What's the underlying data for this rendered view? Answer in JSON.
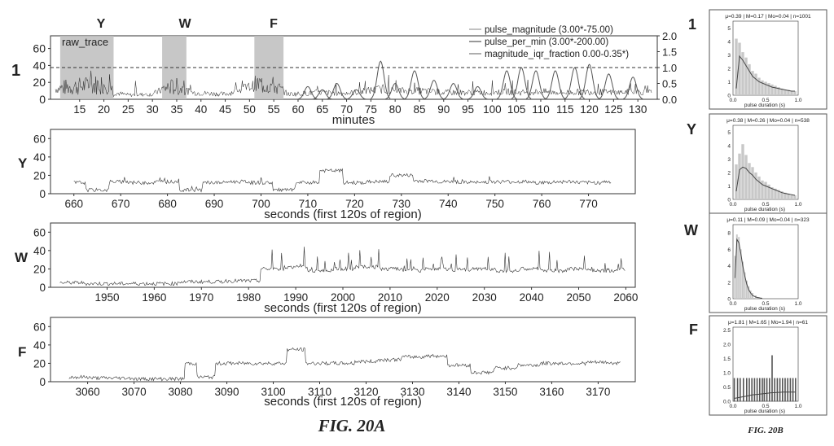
{
  "figure_a": {
    "caption": "FIG. 20A",
    "top_panel": {
      "row_label": "1",
      "x_label": "minutes",
      "inset_label": "raw_trace",
      "region_labels": [
        "Y",
        "W",
        "F"
      ],
      "legend": [
        "pulse_magnitude (3.00*-75.00)",
        "pulse_per_min (3.00*-200.00)",
        "magnitude_iqr_fraction 0.00-0.35*)"
      ],
      "y_ticks": [
        "0",
        "20",
        "40",
        "60"
      ],
      "y2_ticks": [
        "0.0",
        "0.5",
        "1.0",
        "1.5",
        "2.0"
      ],
      "x_ticks": [
        "15",
        "20",
        "25",
        "30",
        "35",
        "40",
        "45",
        "50",
        "55",
        "60",
        "65",
        "70",
        "75",
        "80",
        "85",
        "90",
        "95",
        "100",
        "105",
        "110",
        "115",
        "120",
        "125",
        "130"
      ]
    },
    "panels": [
      {
        "row_label": "Y",
        "x_label": "seconds (first 120s of region)",
        "y_ticks": [
          "0",
          "20",
          "40",
          "60"
        ],
        "x_ticks": [
          "660",
          "670",
          "680",
          "690",
          "700",
          "710",
          "720",
          "730",
          "740",
          "750",
          "760",
          "770"
        ]
      },
      {
        "row_label": "W",
        "x_label": "seconds (first 120s of region)",
        "y_ticks": [
          "0",
          "20",
          "40",
          "60"
        ],
        "x_ticks": [
          "1950",
          "1960",
          "1970",
          "1980",
          "1990",
          "2000",
          "2010",
          "2020",
          "2030",
          "2040",
          "2050",
          "2060"
        ]
      },
      {
        "row_label": "F",
        "x_label": "seconds (first 120s of region)",
        "y_ticks": [
          "0",
          "20",
          "40",
          "60"
        ],
        "x_ticks": [
          "3060",
          "3070",
          "3080",
          "3090",
          "3100",
          "3110",
          "3120",
          "3130",
          "3140",
          "3150",
          "3160",
          "3170"
        ]
      }
    ]
  },
  "figure_b": {
    "caption": "FIG. 20B",
    "x_label": "pulse duration (s)",
    "x_ticks": [
      "0.0",
      "0.5",
      "1.0"
    ],
    "panels": [
      {
        "row_label": "1",
        "stats": "μ=0.39 | M=0.17 | Mo=0.04 | n=1001",
        "y_ticks": [
          "0",
          "1",
          "2",
          "3",
          "4",
          "5"
        ]
      },
      {
        "row_label": "Y",
        "stats": "μ=0.38 | M=0.26 | Mo=0.04 | n=538",
        "y_ticks": [
          "0",
          "1",
          "2",
          "3",
          "4",
          "5"
        ]
      },
      {
        "row_label": "W",
        "stats": "μ=0.11 | M=0.09 | Mo=0.04 | n=323",
        "y_ticks": [
          "0",
          "2",
          "4",
          "6",
          "8"
        ]
      },
      {
        "row_label": "F",
        "stats": "μ=1.81 | M=1.65 | Mo=1.94 | n=61",
        "y_ticks": [
          "0.0",
          "0.5",
          "1.0",
          "1.5",
          "2.0",
          "2.5"
        ]
      }
    ]
  },
  "chart_data": [
    {
      "type": "line",
      "x_unit": "minutes",
      "xlim": [
        9,
        134
      ],
      "ylim": [
        0,
        75
      ],
      "y2lim": [
        0,
        2.0
      ],
      "highlighted_regions": [
        {
          "label": "Y",
          "x": [
            11,
            22
          ]
        },
        {
          "label": "W",
          "x": [
            32,
            37
          ]
        },
        {
          "label": "F",
          "x": [
            51,
            57
          ]
        }
      ],
      "series": [
        {
          "name": "pulse_magnitude (3.00*-75.00)",
          "x": [
            10,
            12,
            14,
            16,
            18,
            20,
            21,
            22,
            25,
            30,
            33,
            35,
            38,
            45,
            52,
            55,
            58,
            65,
            70,
            77,
            80,
            85,
            90,
            95,
            100,
            103,
            106,
            110,
            115,
            120,
            125,
            130,
            133
          ],
          "values": [
            12,
            14,
            15,
            16,
            17,
            18,
            20,
            8,
            5,
            6,
            14,
            15,
            8,
            6,
            18,
            16,
            6,
            8,
            7,
            12,
            10,
            10,
            8,
            8,
            8,
            9,
            8,
            9,
            8,
            9,
            8,
            9,
            8
          ]
        },
        {
          "name": "magnitude_iqr_fraction 0.00-0.35*)",
          "x": [
            62,
            65,
            68,
            72,
            77,
            80,
            84,
            88,
            92,
            97,
            103,
            106,
            109,
            113,
            117,
            120,
            124,
            129
          ],
          "values": [
            0.4,
            0.3,
            0.5,
            0.3,
            1.2,
            0.5,
            0.9,
            0.6,
            0.5,
            0.4,
            0.9,
            1.0,
            0.9,
            0.9,
            1.0,
            1.1,
            0.8,
            0.7
          ]
        }
      ],
      "reference_line_y2": 1.0
    },
    {
      "type": "line",
      "region": "Y",
      "xlim": [
        655,
        780
      ],
      "ylim": [
        0,
        70
      ],
      "x": [
        660,
        665,
        670,
        675,
        680,
        685,
        690,
        695,
        700,
        705,
        710,
        715,
        720,
        725,
        730,
        735,
        740,
        745,
        750,
        755,
        760,
        765,
        770,
        775
      ],
      "values": [
        12,
        4,
        13,
        12,
        13,
        4,
        12,
        13,
        12,
        4,
        12,
        25,
        12,
        13,
        20,
        14,
        13,
        12,
        13,
        13,
        12,
        13,
        12,
        13
      ]
    },
    {
      "type": "line",
      "region": "W",
      "xlim": [
        1938,
        2062
      ],
      "ylim": [
        0,
        70
      ],
      "x": [
        1940,
        1950,
        1960,
        1970,
        1980,
        1985,
        1990,
        1995,
        2000,
        2005,
        2010,
        2015,
        2020,
        2025,
        2030,
        2035,
        2040,
        2045,
        2050,
        2055,
        2060
      ],
      "values": [
        5,
        4,
        4,
        6,
        7,
        20,
        22,
        18,
        20,
        22,
        20,
        18,
        20,
        19,
        20,
        18,
        20,
        18,
        20,
        18,
        20
      ]
    },
    {
      "type": "line",
      "region": "F",
      "xlim": [
        3052,
        3178
      ],
      "ylim": [
        0,
        70
      ],
      "x": [
        3056,
        3065,
        3075,
        3080,
        3082,
        3085,
        3090,
        3095,
        3100,
        3106,
        3108,
        3115,
        3120,
        3125,
        3130,
        3135,
        3140,
        3145,
        3150,
        3155,
        3160,
        3165,
        3170,
        3175
      ],
      "values": [
        5,
        4,
        3,
        3,
        20,
        5,
        20,
        20,
        20,
        35,
        20,
        20,
        22,
        24,
        27,
        28,
        18,
        10,
        15,
        18,
        20,
        20,
        21,
        20
      ]
    },
    {
      "type": "bar",
      "region": "1",
      "xlim": [
        0,
        1.0
      ],
      "ylim": [
        0,
        5.5
      ],
      "x": [
        0.05,
        0.1,
        0.15,
        0.2,
        0.25,
        0.3,
        0.35,
        0.4,
        0.45,
        0.5,
        0.55,
        0.6,
        0.65,
        0.7,
        0.75,
        0.8,
        0.85,
        0.9,
        0.95
      ],
      "values": [
        4.2,
        3.9,
        3.2,
        2.8,
        2.3,
        1.8,
        1.6,
        1.3,
        1.1,
        1.0,
        0.9,
        0.8,
        0.7,
        0.6,
        0.5,
        0.4,
        0.4,
        0.3,
        0.3
      ],
      "fit_curve": [
        0.5,
        2.9,
        2.6,
        2.2,
        1.8,
        1.4,
        1.2,
        1.0,
        0.9,
        0.8,
        0.7,
        0.6,
        0.55,
        0.5,
        0.45,
        0.4,
        0.35,
        0.3,
        0.3
      ]
    },
    {
      "type": "bar",
      "region": "Y",
      "xlim": [
        0,
        1.0
      ],
      "ylim": [
        0,
        5.5
      ],
      "x": [
        0.05,
        0.1,
        0.15,
        0.2,
        0.25,
        0.3,
        0.35,
        0.4,
        0.45,
        0.5,
        0.55,
        0.6,
        0.65,
        0.7,
        0.75,
        0.8,
        0.85,
        0.9,
        0.95
      ],
      "values": [
        2.6,
        3.4,
        4.1,
        3.3,
        2.7,
        2.4,
        2.0,
        1.7,
        1.4,
        1.3,
        1.1,
        0.9,
        0.8,
        0.7,
        0.6,
        0.5,
        0.4,
        0.3,
        0.3
      ],
      "fit_curve": [
        0.6,
        2.2,
        2.4,
        2.3,
        2.0,
        1.8,
        1.5,
        1.3,
        1.1,
        1.0,
        0.9,
        0.8,
        0.7,
        0.6,
        0.5,
        0.45,
        0.4,
        0.35,
        0.3
      ]
    },
    {
      "type": "bar",
      "region": "W",
      "xlim": [
        0,
        1.0
      ],
      "ylim": [
        0,
        9
      ],
      "x": [
        0.03,
        0.06,
        0.09,
        0.12,
        0.15,
        0.18,
        0.21,
        0.24,
        0.27,
        0.3,
        0.35,
        0.4,
        0.45
      ],
      "values": [
        5.2,
        7.8,
        7.5,
        6.0,
        4.5,
        3.2,
        2.2,
        1.5,
        1.0,
        0.7,
        0.4,
        0.2,
        0.1
      ],
      "fit_curve": [
        2.5,
        7.2,
        6.8,
        5.5,
        4.0,
        2.8,
        1.8,
        1.1,
        0.7,
        0.4,
        0.2,
        0.1,
        0.05
      ]
    },
    {
      "type": "bar",
      "region": "F",
      "xlim": [
        0,
        1.0
      ],
      "ylim": [
        0,
        2.6
      ],
      "x": [
        0.02,
        0.07,
        0.11,
        0.16,
        0.21,
        0.25,
        0.29,
        0.33,
        0.37,
        0.41,
        0.45,
        0.48,
        0.52,
        0.56,
        0.6,
        0.64,
        0.68,
        0.72,
        0.76,
        0.8,
        0.84,
        0.88,
        0.92,
        0.96
      ],
      "values": [
        0.8,
        0.8,
        0.8,
        0.8,
        0.8,
        0.8,
        0.8,
        0.8,
        0.8,
        0.8,
        0.8,
        0.8,
        0.8,
        0.8,
        1.6,
        0.8,
        0.8,
        0.8,
        0.8,
        0.8,
        0.8,
        0.8,
        0.8,
        0.8
      ],
      "fit_curve": [
        0.1,
        0.12,
        0.14,
        0.16,
        0.18,
        0.2,
        0.22,
        0.23,
        0.24,
        0.25,
        0.26,
        0.27,
        0.28,
        0.29,
        0.3,
        0.3,
        0.31,
        0.31,
        0.32,
        0.32,
        0.32,
        0.32,
        0.32,
        0.32
      ]
    }
  ]
}
